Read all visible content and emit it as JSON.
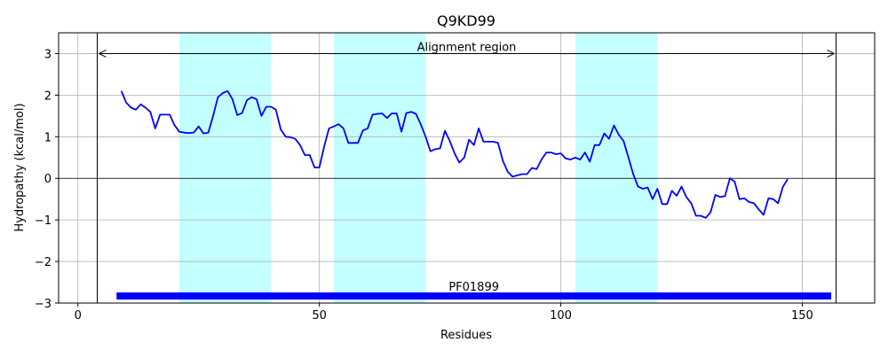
{
  "chart_data": {
    "type": "line",
    "title": "Q9KD99",
    "xlabel": "Residues",
    "ylabel": "Hydropathy (kcal/mol)",
    "xlim": [
      -4,
      165
    ],
    "ylim": [
      -3,
      3.5
    ],
    "xticks": [
      0,
      50,
      100,
      150
    ],
    "yticks": [
      -3,
      -2,
      -1,
      0,
      1,
      2,
      3
    ],
    "grid": true,
    "colors": {
      "line": "#0000ff",
      "band": "#c4ffff",
      "domain_bar": "#0000ff",
      "grid": "#b0b0b0"
    },
    "highlight_bands": [
      {
        "x0": 21,
        "x1": 40
      },
      {
        "x0": 53,
        "x1": 72
      },
      {
        "x0": 103,
        "x1": 120
      }
    ],
    "alignment_region": {
      "label": "Alignment region",
      "x0": 4,
      "x1": 157,
      "y": 3.0
    },
    "domain": {
      "label": "PF01899",
      "x0": 8,
      "x1": 156,
      "y": -2.83
    },
    "series": [
      {
        "x": [
          9,
          10,
          11,
          12,
          13,
          14,
          15,
          16,
          17,
          18,
          19,
          20,
          21,
          22,
          23,
          24,
          25,
          26,
          27,
          28,
          29,
          30,
          31,
          32,
          33,
          34,
          35,
          36,
          37,
          38,
          39,
          40,
          41,
          42,
          43,
          44,
          45,
          46,
          47,
          48,
          49,
          50,
          51,
          52,
          53,
          54,
          55,
          56,
          57,
          58,
          59,
          60,
          61,
          62,
          63,
          64,
          65,
          66,
          67,
          68,
          69,
          70,
          71,
          72,
          73,
          74,
          75,
          76,
          77,
          78,
          79,
          80,
          81,
          82,
          83,
          84,
          85,
          86,
          87,
          88,
          89,
          90,
          91,
          92,
          93,
          94,
          95,
          96,
          97,
          98,
          99,
          100,
          101,
          102,
          103,
          104,
          105,
          106,
          107,
          108,
          109,
          110,
          111,
          112,
          113,
          114,
          115,
          116,
          117,
          118,
          119,
          120,
          121,
          122,
          123,
          124,
          125,
          126,
          127,
          128,
          129,
          130,
          131,
          132,
          133,
          134,
          135,
          136,
          137,
          138,
          139,
          140,
          141,
          142,
          143,
          144,
          145,
          146,
          147
        ],
        "y": [
          2.1,
          1.82,
          1.7,
          1.65,
          1.78,
          1.7,
          1.6,
          1.2,
          1.53,
          1.53,
          1.53,
          1.28,
          1.12,
          1.1,
          1.09,
          1.1,
          1.25,
          1.08,
          1.1,
          1.5,
          1.95,
          2.05,
          2.1,
          1.9,
          1.52,
          1.57,
          1.88,
          1.95,
          1.9,
          1.5,
          1.72,
          1.72,
          1.65,
          1.18,
          1.0,
          0.99,
          0.95,
          0.8,
          0.56,
          0.56,
          0.26,
          0.26,
          0.77,
          1.2,
          1.25,
          1.3,
          1.2,
          0.85,
          0.85,
          0.85,
          1.15,
          1.2,
          1.53,
          1.55,
          1.56,
          1.45,
          1.56,
          1.56,
          1.12,
          1.57,
          1.6,
          1.55,
          1.3,
          1.0,
          0.65,
          0.7,
          0.72,
          1.14,
          0.9,
          0.6,
          0.38,
          0.5,
          0.93,
          0.8,
          1.2,
          0.88,
          0.88,
          0.88,
          0.85,
          0.42,
          0.16,
          0.04,
          0.07,
          0.1,
          0.1,
          0.25,
          0.22,
          0.45,
          0.62,
          0.62,
          0.58,
          0.6,
          0.48,
          0.45,
          0.5,
          0.45,
          0.62,
          0.4,
          0.8,
          0.8,
          1.08,
          0.95,
          1.27,
          1.05,
          0.9,
          0.5,
          0.1,
          -0.2,
          -0.25,
          -0.22,
          -0.5,
          -0.25,
          -0.62,
          -0.62,
          -0.3,
          -0.42,
          -0.2,
          -0.45,
          -0.6,
          -0.9,
          -0.9,
          -0.95,
          -0.82,
          -0.4,
          -0.45,
          -0.43,
          0.0,
          -0.08,
          -0.5,
          -0.48,
          -0.57,
          -0.6,
          -0.75,
          -0.88,
          -0.48,
          -0.5,
          -0.6,
          -0.2,
          -0.02
        ]
      }
    ]
  }
}
